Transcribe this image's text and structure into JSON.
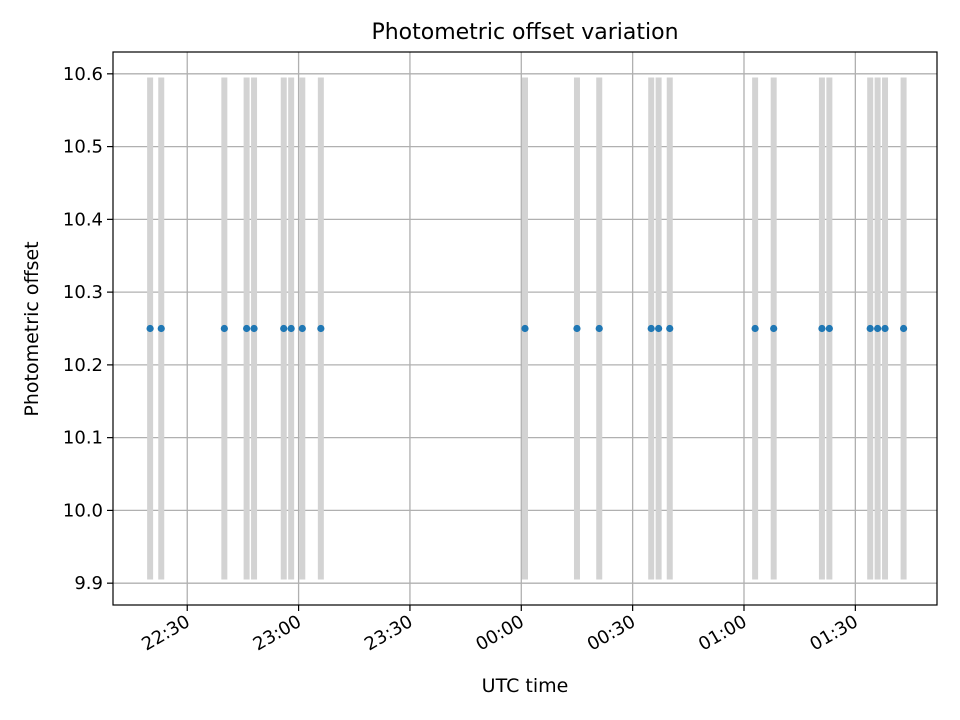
{
  "chart_data": {
    "type": "scatter",
    "title": "Photometric offset variation",
    "xlabel": "UTC time",
    "ylabel": "Photometric offset",
    "x_tick_labels": [
      "22:30",
      "23:00",
      "23:30",
      "00:00",
      "00:30",
      "01:00",
      "01:30"
    ],
    "y_tick_labels": [
      "9.9",
      "10.0",
      "10.1",
      "10.2",
      "10.3",
      "10.4",
      "10.5",
      "10.6"
    ],
    "x_unit": "UTC time (HH:MM)",
    "xlim": [
      "22:10",
      "01:52"
    ],
    "ylim": [
      9.87,
      10.63
    ],
    "grid": true,
    "series": [
      {
        "x": [
          "22:20",
          "22:23",
          "22:40",
          "22:46",
          "22:48",
          "22:56",
          "22:58",
          "23:01",
          "23:06",
          "00:01",
          "00:15",
          "00:21",
          "00:35",
          "00:37",
          "00:40",
          "01:03",
          "01:08",
          "01:21",
          "01:23",
          "01:34",
          "01:36",
          "01:38",
          "01:43"
        ],
        "y": [
          10.25,
          10.25,
          10.25,
          10.25,
          10.25,
          10.25,
          10.25,
          10.25,
          10.25,
          10.25,
          10.25,
          10.25,
          10.25,
          10.25,
          10.25,
          10.25,
          10.25,
          10.25,
          10.25,
          10.25,
          10.25,
          10.25,
          10.25
        ],
        "error_low": [
          9.905,
          9.905,
          9.905,
          9.905,
          9.905,
          9.905,
          9.905,
          9.905,
          9.905,
          9.905,
          9.905,
          9.905,
          9.905,
          9.905,
          9.905,
          9.905,
          9.905,
          9.905,
          9.905,
          9.905,
          9.905,
          9.905,
          9.905
        ],
        "error_high": [
          10.595,
          10.595,
          10.595,
          10.595,
          10.595,
          10.595,
          10.595,
          10.595,
          10.595,
          10.595,
          10.595,
          10.595,
          10.595,
          10.595,
          10.595,
          10.595,
          10.595,
          10.595,
          10.595,
          10.595,
          10.595,
          10.595,
          10.595
        ],
        "color": "#1f77b4",
        "error_color": "#d3d3d3"
      }
    ]
  }
}
